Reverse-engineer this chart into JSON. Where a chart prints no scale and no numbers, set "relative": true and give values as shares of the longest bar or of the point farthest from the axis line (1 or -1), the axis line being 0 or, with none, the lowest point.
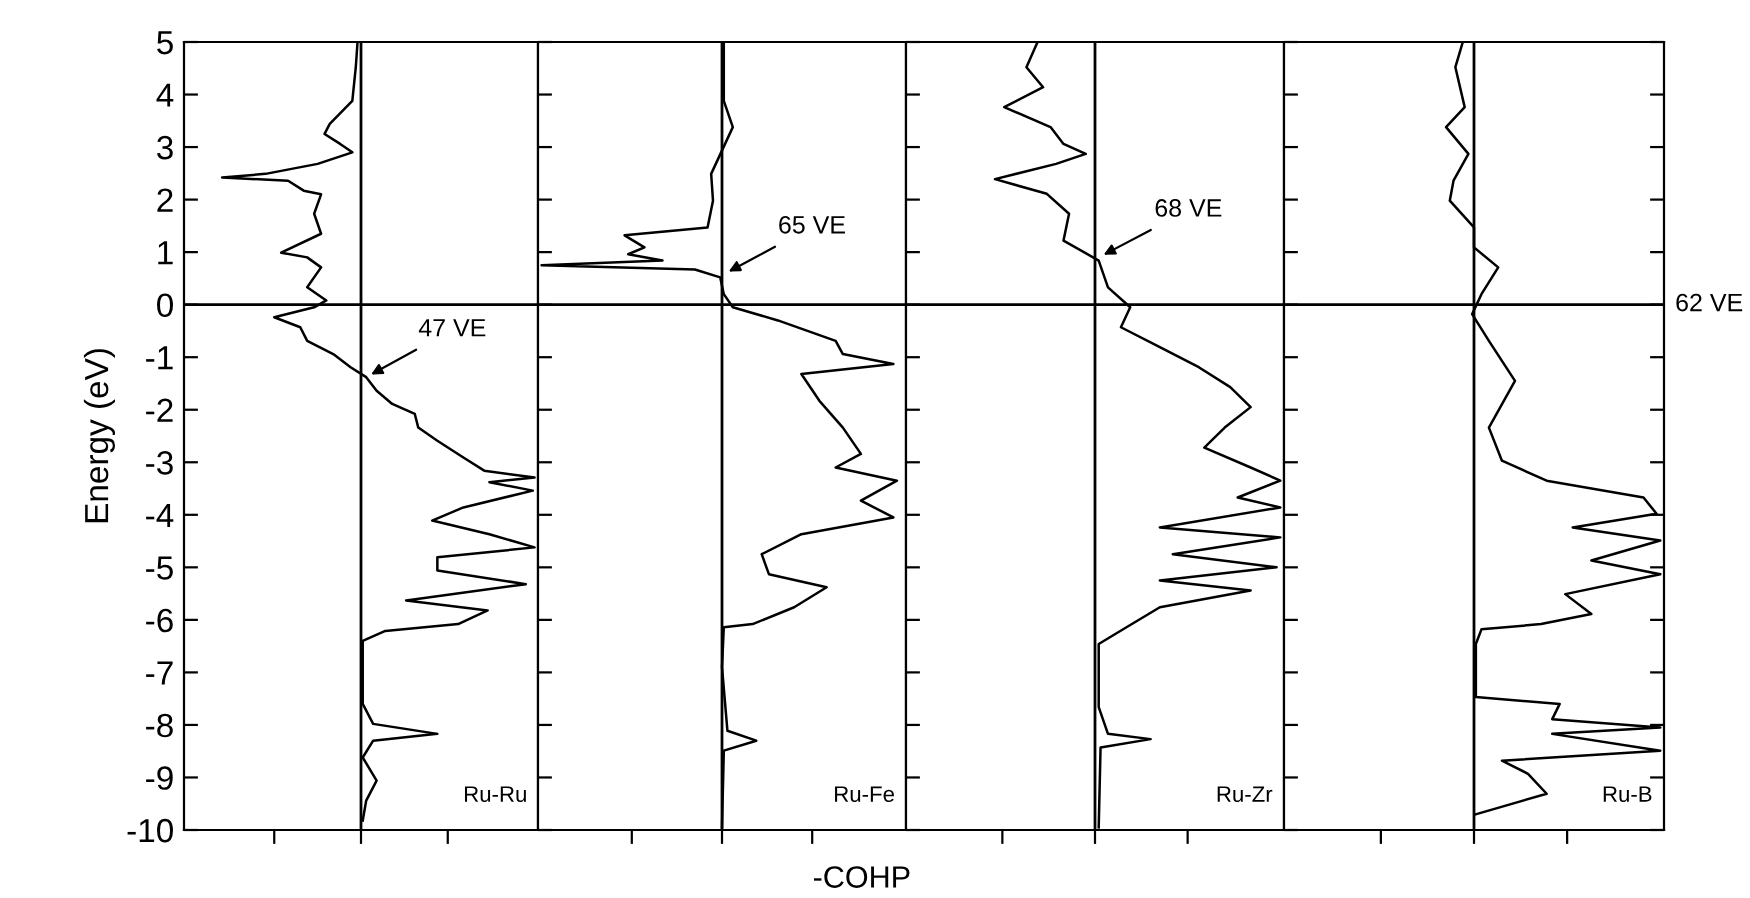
{
  "chart_data": [
    {
      "type": "line",
      "orientation": "horizontal",
      "relative": true,
      "title": "Ru-Ru",
      "ylabel": "Energy (eV)",
      "ylim": [
        -10,
        5
      ],
      "yticks": [
        -10,
        -9,
        -8,
        -7,
        -6,
        -5,
        -4,
        -3,
        -2,
        -1,
        0,
        1,
        2,
        3,
        4,
        5
      ],
      "tick_labels": "y",
      "ref_lines": [
        {
          "axis": "y",
          "value": 0,
          "color": "#000000"
        }
      ],
      "annotations": [
        {
          "text": "47 VE",
          "x": 0.03,
          "y": -1.38
        }
      ],
      "series": [
        {
          "color": "#000000",
          "x": [
            5,
            4.52,
            3.88,
            3.44,
            3.25,
            3.06,
            2.9,
            2.68,
            2.49,
            2.42,
            2.36,
            2.17,
            2.1,
            1.73,
            1.35,
            0.99,
            0.9,
            0.71,
            0.33,
            0.08,
            -0.05,
            -0.24,
            -0.43,
            -0.69,
            -0.94,
            -1.19,
            -1.38,
            -1.64,
            -1.89,
            -2.08,
            -2.34,
            -2.59,
            -2.91,
            -3.16,
            -3.29,
            -3.38,
            -3.54,
            -3.86,
            -4.11,
            -4.37,
            -4.62,
            -4.81,
            -5.06,
            -5.32,
            -5.63,
            -5.82,
            -6.08,
            -6.21,
            -6.4,
            -6.9,
            -7.6,
            -7.98,
            -8.17,
            -8.3,
            -8.62,
            -9.06,
            -9.44,
            -9.82
          ],
          "values": [
            -0.02,
            -0.03,
            -0.05,
            -0.18,
            -0.21,
            -0.12,
            -0.05,
            -0.25,
            -0.55,
            -0.8,
            -0.42,
            -0.33,
            -0.23,
            -0.27,
            -0.23,
            -0.46,
            -0.31,
            -0.23,
            -0.31,
            -0.2,
            -0.27,
            -0.5,
            -0.35,
            -0.31,
            -0.16,
            -0.06,
            0.03,
            0.09,
            0.18,
            0.31,
            0.33,
            0.44,
            0.59,
            0.71,
            1.0,
            0.74,
            0.99,
            0.59,
            0.41,
            0.74,
            1.0,
            0.44,
            0.44,
            0.95,
            0.26,
            0.73,
            0.56,
            0.14,
            0.01,
            0.01,
            0.01,
            0.07,
            0.44,
            0.07,
            0.01,
            0.09,
            0.03,
            0.01
          ]
        }
      ]
    },
    {
      "type": "line",
      "orientation": "horizontal",
      "relative": true,
      "title": "Ru-Fe",
      "xlabel": "-COHP",
      "ylim": [
        -10,
        5
      ],
      "yticks": [
        -10,
        -9,
        -8,
        -7,
        -6,
        -5,
        -4,
        -3,
        -2,
        -1,
        0,
        1,
        2,
        3,
        4,
        5
      ],
      "tick_labels": false,
      "ref_lines": [
        {
          "axis": "y",
          "value": 0,
          "color": "#000000"
        }
      ],
      "annotations": [
        {
          "text": "65 VE",
          "x": 0.01,
          "y": 0.58
        }
      ],
      "series": [
        {
          "color": "#000000",
          "x": [
            5,
            3.88,
            3.38,
            2.49,
            1.98,
            1.47,
            1.32,
            1.09,
            0.96,
            0.84,
            0.75,
            0.67,
            0.52,
            0.2,
            -0.05,
            -0.3,
            -0.69,
            -0.94,
            -1.13,
            -1.32,
            -1.83,
            -2.34,
            -2.84,
            -3.1,
            -3.35,
            -3.73,
            -4.05,
            -4.37,
            -4.75,
            -5.13,
            -5.38,
            -5.76,
            -6.08,
            -6.14,
            -6.9,
            -8.11,
            -8.3,
            -8.49,
            -9.95
          ],
          "values": [
            0.01,
            0.01,
            0.06,
            -0.06,
            -0.05,
            -0.08,
            -0.54,
            -0.43,
            -0.52,
            -0.33,
            -1.0,
            -0.15,
            -0.01,
            0.01,
            0.06,
            0.31,
            0.63,
            0.67,
            0.95,
            0.44,
            0.54,
            0.67,
            0.77,
            0.63,
            0.97,
            0.77,
            0.95,
            0.44,
            0.22,
            0.26,
            0.58,
            0.4,
            0.17,
            0.01,
            0,
            0.03,
            0.19,
            0.01,
            0
          ]
        }
      ]
    },
    {
      "type": "line",
      "orientation": "horizontal",
      "relative": true,
      "title": "Ru-Zr",
      "ylim": [
        -10,
        5
      ],
      "yticks": [
        -10,
        -9,
        -8,
        -7,
        -6,
        -5,
        -4,
        -3,
        -2,
        -1,
        0,
        1,
        2,
        3,
        4,
        5
      ],
      "tick_labels": false,
      "ref_lines": [
        {
          "axis": "y",
          "value": 0,
          "color": "#000000"
        }
      ],
      "annotations": [
        {
          "text": "68 VE",
          "x": 0.02,
          "y": 0.9
        }
      ],
      "series": [
        {
          "color": "#000000",
          "x": [
            5,
            4.52,
            4.14,
            3.76,
            3.38,
            3.06,
            2.87,
            2.68,
            2.39,
            2.11,
            1.73,
            1.22,
            0.84,
            0.33,
            -0.05,
            -0.43,
            -0.81,
            -1.19,
            -1.57,
            -1.95,
            -2.34,
            -2.72,
            -3.1,
            -3.35,
            -3.67,
            -3.86,
            -4.24,
            -4.43,
            -4.75,
            -5.0,
            -5.25,
            -5.44,
            -5.76,
            -6.14,
            -6.46,
            -7.66,
            -8.17,
            -8.27,
            -8.43,
            -9.95
          ],
          "values": [
            -0.31,
            -0.37,
            -0.28,
            -0.49,
            -0.24,
            -0.17,
            -0.05,
            -0.21,
            -0.54,
            -0.26,
            -0.14,
            -0.17,
            0.02,
            0.07,
            0.19,
            0.14,
            0.35,
            0.56,
            0.73,
            0.84,
            0.7,
            0.59,
            0.84,
            1.0,
            0.77,
            1.0,
            0.35,
            1.0,
            0.42,
            0.98,
            0.35,
            0.84,
            0.35,
            0.17,
            0.02,
            0.02,
            0.07,
            0.3,
            0.03,
            0.02
          ]
        }
      ]
    },
    {
      "type": "line",
      "orientation": "horizontal",
      "relative": true,
      "title": "Ru-B",
      "ylim": [
        -10,
        5
      ],
      "yticks": [
        -10,
        -9,
        -8,
        -7,
        -6,
        -5,
        -4,
        -3,
        -2,
        -1,
        0,
        1,
        2,
        3,
        4,
        5
      ],
      "tick_labels": false,
      "ref_lines": [
        {
          "axis": "y",
          "value": 0,
          "color": "#000000",
          "label": "62 VE"
        }
      ],
      "series": [
        {
          "color": "#000000",
          "x": [
            5,
            4.52,
            3.76,
            3.38,
            2.87,
            2.36,
            1.98,
            1.47,
            1.09,
            0.71,
            0.2,
            -0.18,
            -0.69,
            -1.45,
            -2.34,
            -2.97,
            -3.35,
            -3.67,
            -3.98,
            -4.24,
            -4.49,
            -4.87,
            -5.13,
            -5.51,
            -5.89,
            -6.08,
            -6.18,
            -6.46,
            -7.47,
            -7.6,
            -7.89,
            -8.05,
            -8.17,
            -8.49,
            -8.68,
            -8.93,
            -9.31,
            -9.7
          ],
          "values": [
            -0.06,
            -0.1,
            -0.05,
            -0.15,
            -0.03,
            -0.11,
            -0.13,
            0,
            0,
            0.13,
            0.04,
            -0.01,
            0.08,
            0.22,
            0.08,
            0.15,
            0.39,
            0.91,
            0.98,
            0.53,
            1.0,
            0.63,
            1.0,
            0.49,
            0.63,
            0.36,
            0.04,
            0.01,
            0.01,
            0.46,
            0.42,
            1.0,
            0.42,
            1.0,
            0.15,
            0.29,
            0.39,
            0.01
          ]
        }
      ]
    }
  ]
}
